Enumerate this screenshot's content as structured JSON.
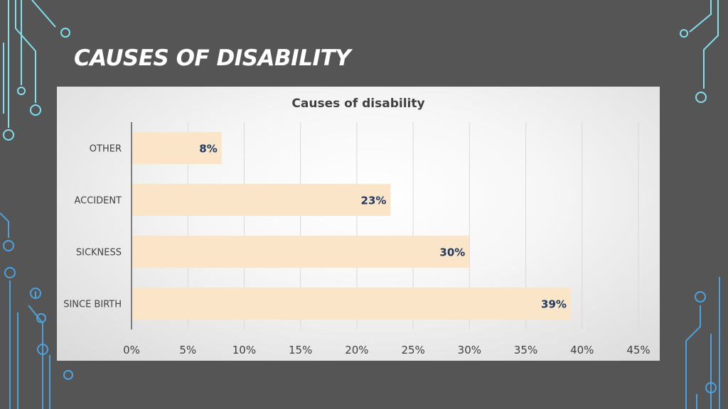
{
  "slide": {
    "title": "CAUSES OF DISABILITY"
  },
  "colors": {
    "background": "#555555",
    "bar_fill": "#fbe5c8",
    "data_label": "#1f3864",
    "circuit_cyan": "#7fe0ee",
    "circuit_blue": "#4aa3df"
  },
  "chart_data": {
    "type": "bar",
    "orientation": "horizontal",
    "title": "Causes of disability",
    "xlabel": "",
    "ylabel": "",
    "categories": [
      "OTHER",
      "ACCIDENT",
      "SICKNESS",
      "SINCE BIRTH"
    ],
    "values": [
      8,
      23,
      30,
      39
    ],
    "data_labels": [
      "8%",
      "23%",
      "30%",
      "39%"
    ],
    "xlim": [
      0,
      45
    ],
    "xticks": [
      0,
      5,
      10,
      15,
      20,
      25,
      30,
      35,
      40,
      45
    ],
    "xtick_labels": [
      "0%",
      "5%",
      "10%",
      "15%",
      "20%",
      "25%",
      "30%",
      "35%",
      "40%",
      "45%"
    ],
    "grid": true,
    "legend": "none"
  }
}
